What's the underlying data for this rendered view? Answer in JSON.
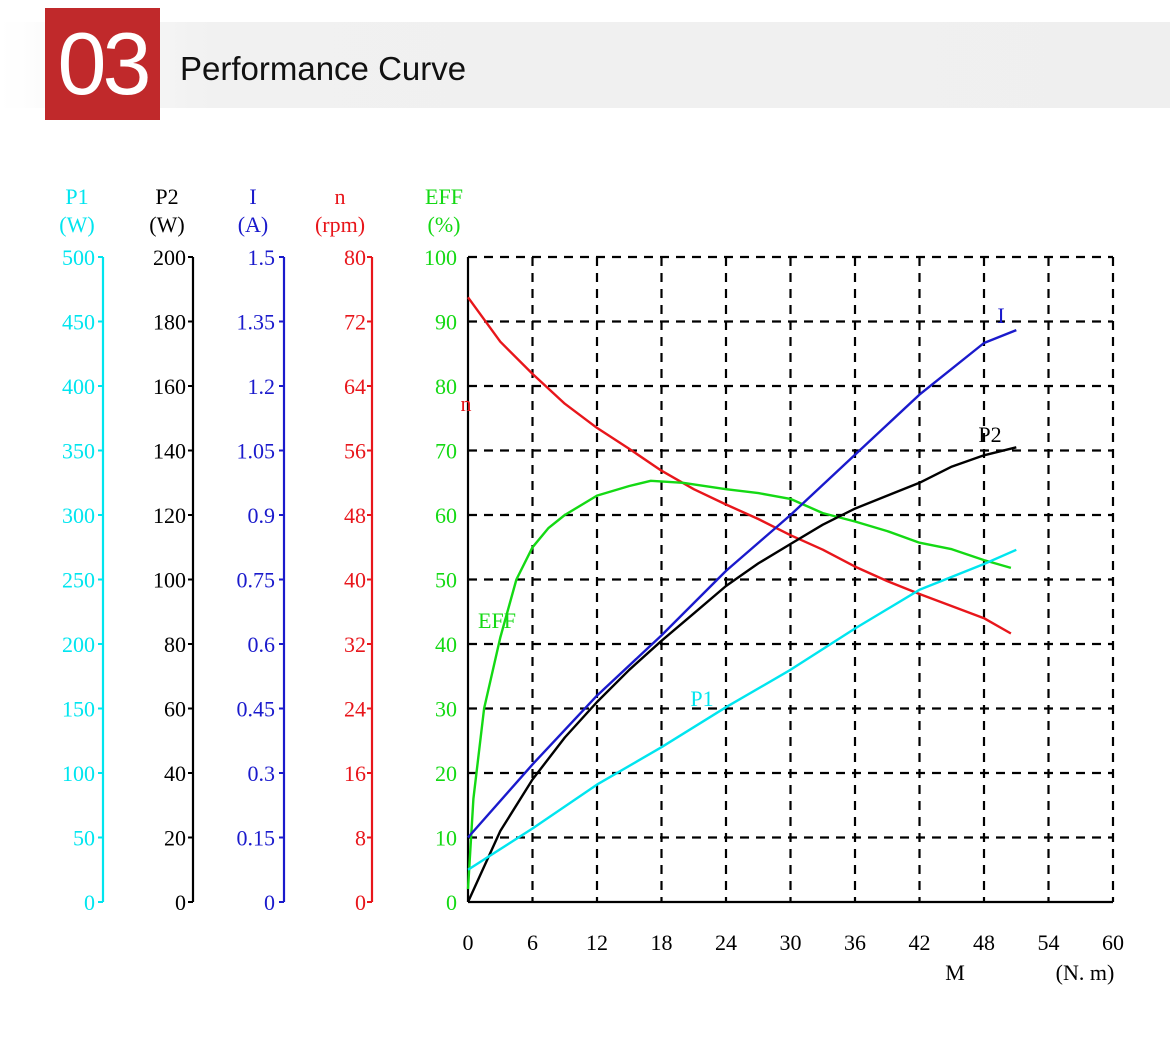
{
  "header": {
    "section_number": "03",
    "section_title": "Performance Curve"
  },
  "chart_data": {
    "type": "line",
    "xlabel": "M",
    "xunit": "(N. m)",
    "xlim": [
      0,
      60
    ],
    "xticks": [
      "0",
      "6",
      "12",
      "18",
      "24",
      "30",
      "36",
      "42",
      "48",
      "54",
      "60"
    ],
    "grid": true,
    "axes": [
      {
        "key": "P1",
        "label": "P1",
        "unit": "(W)",
        "color": "#00e5ef",
        "ticks": [
          "0",
          "50",
          "100",
          "150",
          "200",
          "250",
          "300",
          "350",
          "400",
          "450",
          "500"
        ],
        "range": [
          0,
          500
        ]
      },
      {
        "key": "P2",
        "label": "P2",
        "unit": "(W)",
        "color": "#000000",
        "ticks": [
          "0",
          "20",
          "40",
          "60",
          "80",
          "100",
          "120",
          "140",
          "160",
          "180",
          "200"
        ],
        "range": [
          0,
          200
        ]
      },
      {
        "key": "I",
        "label": "I",
        "unit": "(A)",
        "color": "#1a1acc",
        "ticks": [
          "0",
          "0.15",
          "0.3",
          "0.45",
          "0.6",
          "0.75",
          "0.9",
          "1.05",
          "1.2",
          "1.35",
          "1.5"
        ],
        "range": [
          0,
          1.5
        ]
      },
      {
        "key": "n",
        "label": "n",
        "unit": "(rpm)",
        "color": "#e8161b",
        "ticks": [
          "0",
          "8",
          "16",
          "24",
          "32",
          "40",
          "48",
          "56",
          "64",
          "72",
          "80"
        ],
        "range": [
          0,
          80
        ]
      },
      {
        "key": "EFF",
        "label": "EFF",
        "unit": "(%)",
        "color": "#14d914",
        "ticks": [
          "0",
          "10",
          "20",
          "30",
          "40",
          "50",
          "60",
          "70",
          "80",
          "90",
          "100"
        ],
        "range": [
          0,
          100
        ]
      }
    ],
    "series": [
      {
        "name": "n",
        "axis": "n",
        "color": "#e8161b",
        "x": [
          0,
          3,
          6,
          9,
          12,
          15,
          18,
          21,
          24,
          27,
          30,
          33,
          36,
          39,
          42,
          45,
          48,
          50.5
        ],
        "y": [
          75,
          69.5,
          65.5,
          61.8,
          58.8,
          56.2,
          53.5,
          51.2,
          49.3,
          47.5,
          45.5,
          43.7,
          41.6,
          39.8,
          38.2,
          36.7,
          35.2,
          33.3
        ]
      },
      {
        "name": "EFF",
        "axis": "EFF",
        "color": "#14d914",
        "x": [
          0,
          0.5,
          1.5,
          3,
          4.5,
          6,
          7.5,
          9,
          12,
          15,
          17,
          20,
          24,
          27,
          30,
          33,
          36,
          39,
          42,
          45,
          48,
          50.5
        ],
        "y": [
          2,
          16,
          30,
          41,
          50,
          55,
          58,
          60,
          63,
          64.5,
          65.3,
          65,
          64,
          63.4,
          62.5,
          60.3,
          59,
          57.5,
          55.7,
          54.7,
          53,
          51.8
        ]
      },
      {
        "name": "I",
        "axis": "I",
        "color": "#1a1acc",
        "x": [
          0,
          6,
          12,
          18,
          24,
          30,
          36,
          42,
          48,
          51
        ],
        "y": [
          0.15,
          0.32,
          0.48,
          0.62,
          0.77,
          0.9,
          1.04,
          1.18,
          1.3,
          1.33
        ]
      },
      {
        "name": "P2",
        "axis": "P2",
        "color": "#000000",
        "x": [
          0,
          3,
          6,
          9,
          12,
          15,
          18,
          21,
          24,
          27,
          30,
          33,
          36,
          39,
          42,
          45,
          48,
          51
        ],
        "y": [
          0,
          22,
          38,
          51,
          62,
          72,
          81,
          89.5,
          98,
          105,
          111,
          117,
          122,
          126,
          130,
          135,
          138.5,
          141
        ]
      },
      {
        "name": "P1",
        "axis": "P1",
        "color": "#00e5ef",
        "x": [
          0,
          6,
          12,
          18,
          24,
          30,
          36,
          42,
          48,
          51
        ],
        "y": [
          25,
          57,
          91,
          120,
          151,
          180,
          212,
          242,
          262,
          273
        ]
      }
    ],
    "annotations": [
      {
        "text": "n",
        "color": "#e8161b"
      },
      {
        "text": "EFF",
        "color": "#14d914"
      },
      {
        "text": "I",
        "color": "#1a1acc"
      },
      {
        "text": "P2",
        "color": "#000000"
      },
      {
        "text": "P1",
        "color": "#00e5ef"
      }
    ]
  }
}
